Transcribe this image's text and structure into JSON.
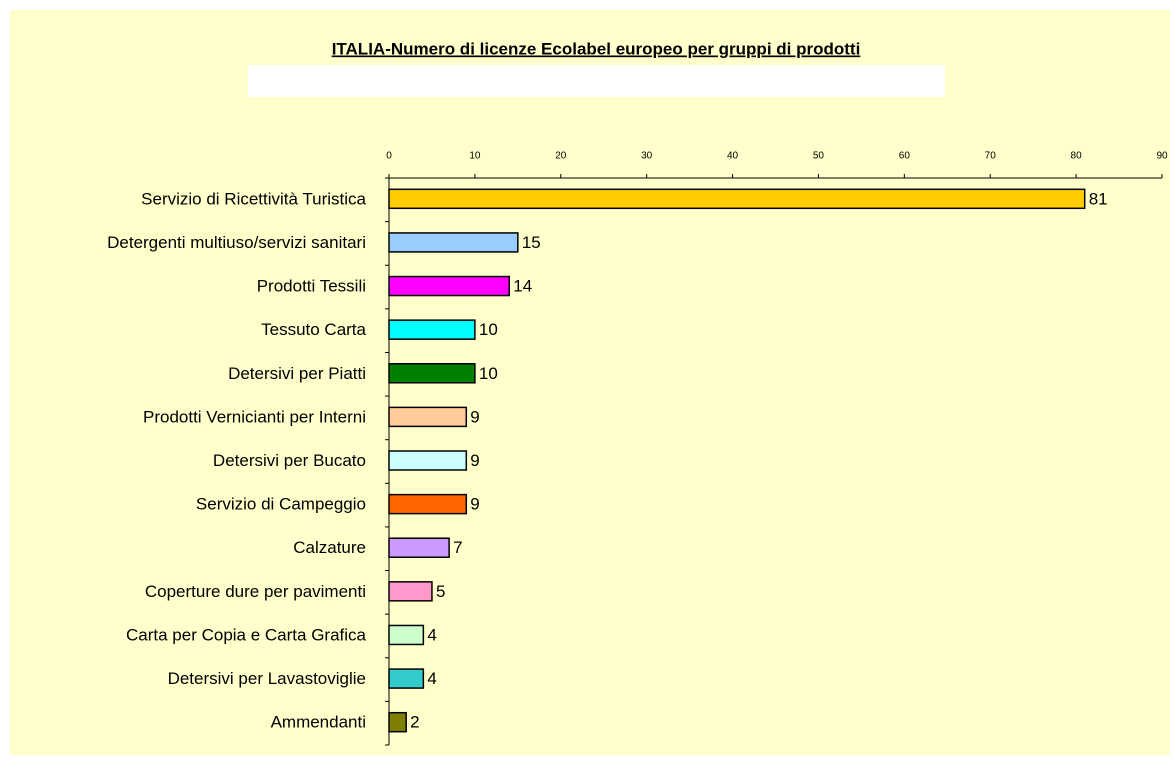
{
  "chart_data": {
    "type": "bar",
    "orientation": "horizontal",
    "title": "ITALIA-Numero di licenze Ecolabel europeo per gruppi di prodotti",
    "categories": [
      "Servizio di Ricettività Turistica",
      "Detergenti multiuso/servizi sanitari",
      "Prodotti Tessili",
      "Tessuto Carta",
      "Detersivi per Piatti",
      "Prodotti Vernicianti per Interni",
      "Detersivi per Bucato",
      "Servizio di Campeggio",
      "Calzature",
      "Coperture dure per pavimenti",
      "Carta per Copia e Carta Grafica",
      "Detersivi per Lavastoviglie",
      "Ammendanti"
    ],
    "values": [
      81,
      15,
      14,
      10,
      10,
      9,
      9,
      9,
      7,
      5,
      4,
      4,
      2
    ],
    "colors": [
      "#FFCC00",
      "#99CCFF",
      "#FF00FF",
      "#00FFFF",
      "#008000",
      "#FFCC99",
      "#CCFFFF",
      "#FF6600",
      "#CC99FF",
      "#FF99CC",
      "#CCFFCC",
      "#33CCCC",
      "#808000"
    ],
    "xlim": [
      0,
      90
    ],
    "xticks": [
      0,
      10,
      20,
      30,
      40,
      50,
      60,
      70,
      80,
      90
    ],
    "grid": false
  }
}
